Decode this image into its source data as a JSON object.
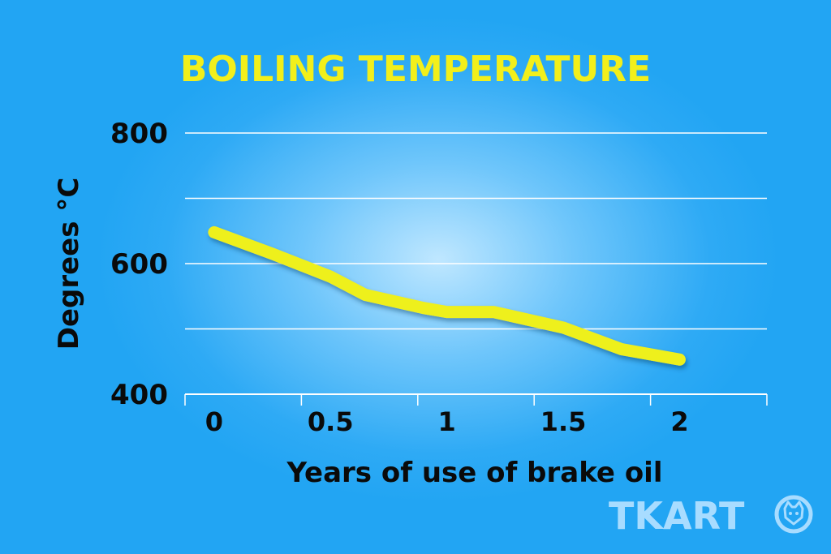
{
  "chart_data": {
    "type": "line",
    "title": "BOILING TEMPERATURE",
    "xlabel": "Years of use of brake oil",
    "ylabel": "Degrees °C",
    "x_ticks": [
      "0",
      "0.5",
      "1",
      "1.5",
      "2"
    ],
    "y_ticks": [
      "800",
      "600",
      "400"
    ],
    "xlim": [
      -0.125,
      2.375
    ],
    "ylim": [
      400,
      800
    ],
    "grid": true,
    "series": [
      {
        "points": [
          {
            "x": 0,
            "y": 648
          },
          {
            "x": 0.25,
            "y": 615
          },
          {
            "x": 0.5,
            "y": 580
          },
          {
            "x": 0.65,
            "y": 552
          },
          {
            "x": 0.9,
            "y": 532
          },
          {
            "x": 1.0,
            "y": 526
          },
          {
            "x": 1.2,
            "y": 526
          },
          {
            "x": 1.5,
            "y": 502
          },
          {
            "x": 1.75,
            "y": 469
          },
          {
            "x": 2.0,
            "y": 453
          }
        ]
      }
    ]
  },
  "colors": {
    "line": "#eef01d",
    "title": "#f2ef1b",
    "grid": "#ffffff",
    "text": "#0a0a0a",
    "logo": "#a8dcff"
  },
  "logo": {
    "text": "TKART",
    "icon": "cat-head-icon"
  }
}
